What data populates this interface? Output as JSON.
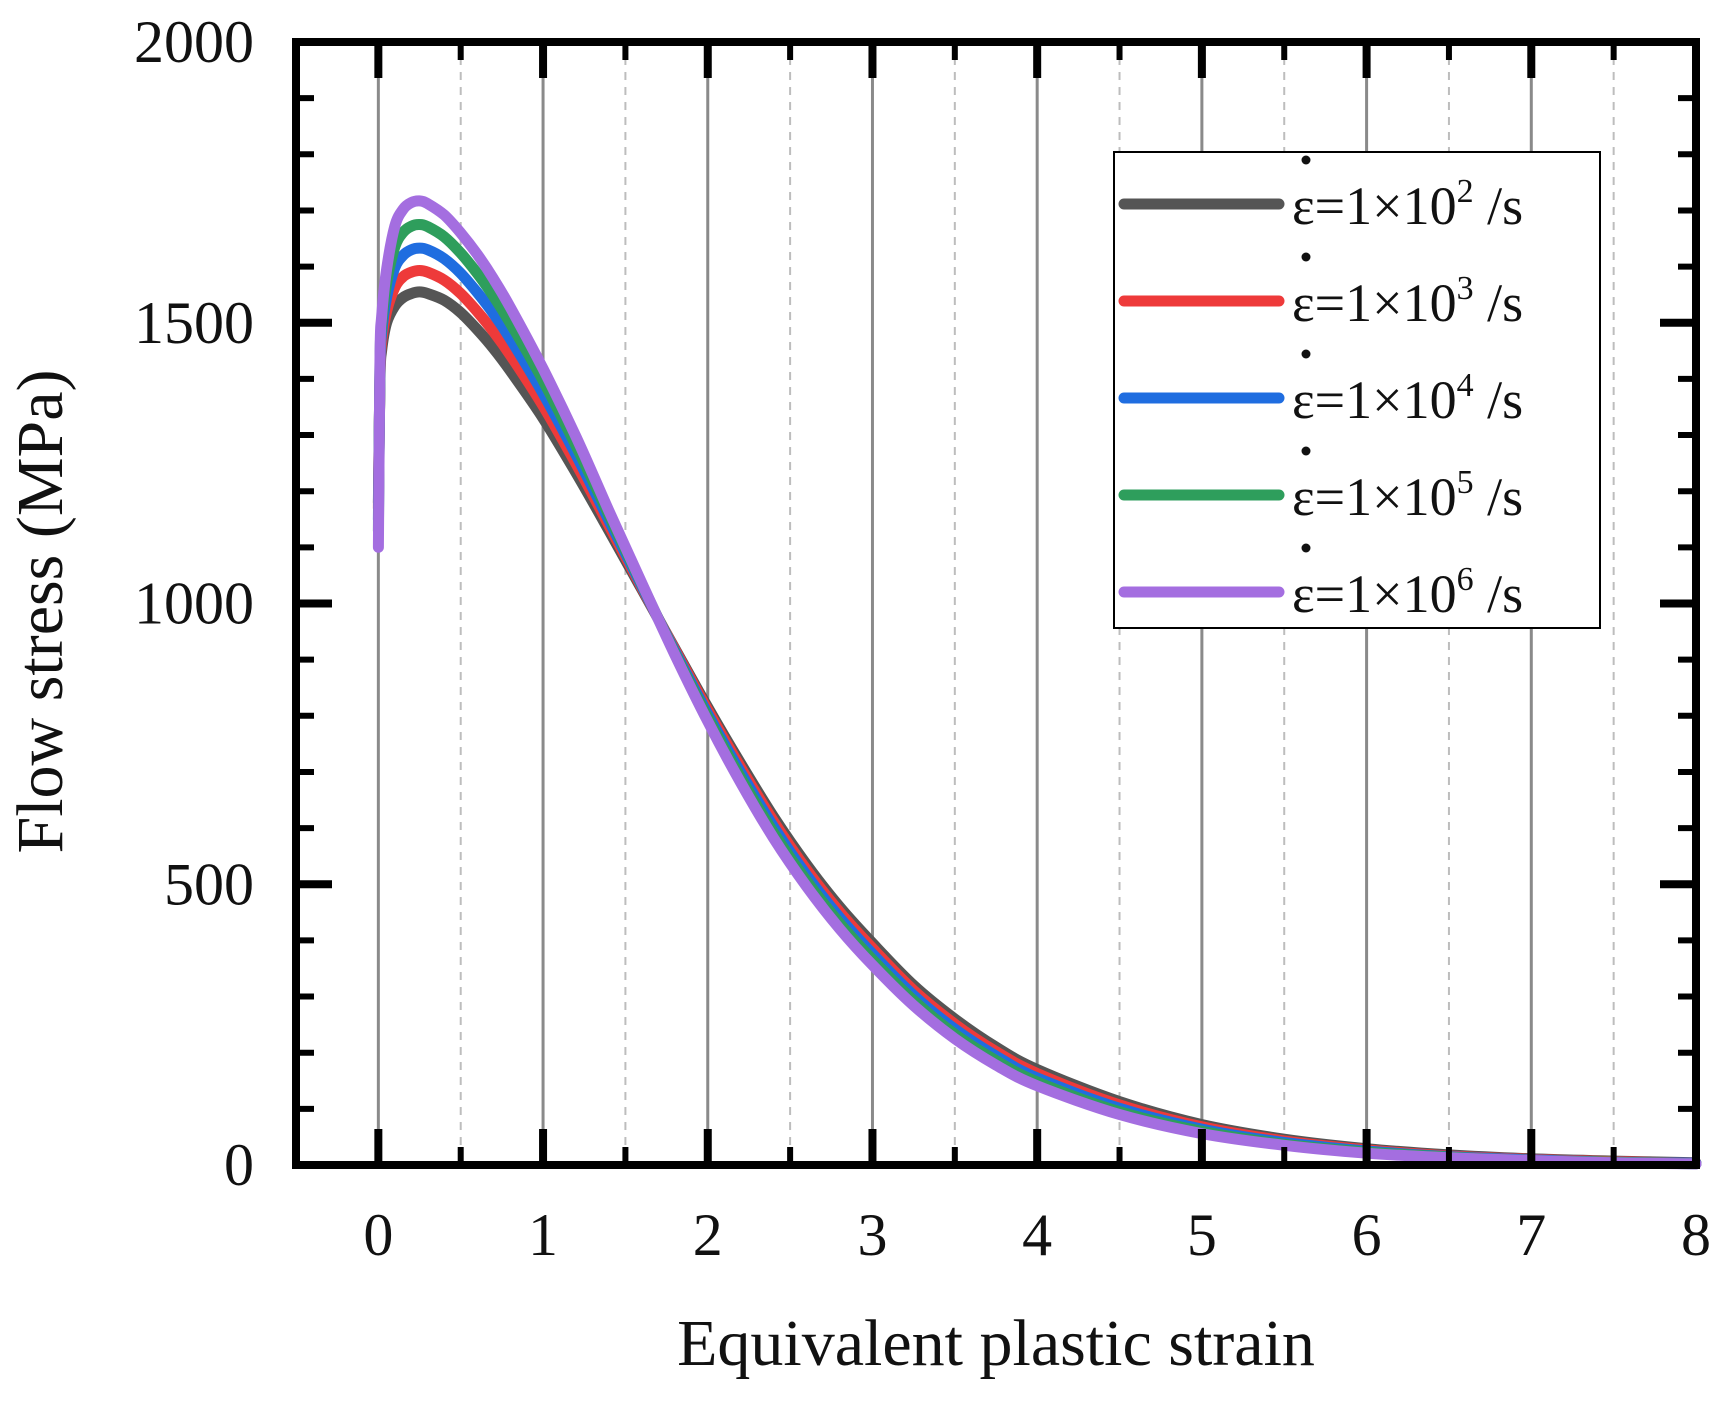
{
  "chart_data": {
    "type": "line",
    "title": "",
    "xlabel": "Equivalent plastic strain",
    "ylabel": "Flow stress (MPa)",
    "xlim": [
      -0.5,
      8
    ],
    "ylim": [
      0,
      2000
    ],
    "xticks": [
      0,
      1,
      2,
      3,
      4,
      5,
      6,
      7,
      8
    ],
    "xtick_labels": [
      "0",
      "1",
      "2",
      "3",
      "4",
      "5",
      "6",
      "7",
      "8"
    ],
    "yticks": [
      0,
      500,
      1000,
      1500,
      2000
    ],
    "ytick_labels": [
      "0",
      "500",
      "1000",
      "1500",
      "2000"
    ],
    "grid": "vertical",
    "legend_position": "top-right",
    "x": [
      0,
      0.01,
      0.02,
      0.05,
      0.1,
      0.15,
      0.2,
      0.25,
      0.3,
      0.4,
      0.5,
      0.6,
      0.7,
      0.8,
      1.0,
      1.2,
      1.4,
      1.6,
      1.8,
      2.0,
      2.2,
      2.4,
      2.6,
      2.8,
      3.0,
      3.25,
      3.5,
      3.75,
      4.0,
      4.5,
      5.0,
      5.5,
      6.0,
      6.5,
      7.0,
      7.5,
      8.0
    ],
    "series": [
      {
        "name_prefix": "ε=1×10",
        "exponent": "2",
        "unit": " /s",
        "color": "#555555",
        "values": [
          1180,
          1400,
          1450,
          1500,
          1530,
          1545,
          1552,
          1555,
          1552,
          1540,
          1518,
          1488,
          1454,
          1415,
          1330,
          1233,
          1130,
          1025,
          920,
          815,
          715,
          620,
          535,
          460,
          395,
          320,
          260,
          210,
          170,
          113,
          72,
          46,
          29,
          18,
          11,
          7,
          4
        ]
      },
      {
        "name_prefix": "ε=1×10",
        "exponent": "3",
        "unit": " /s",
        "color": "#ee3a3a",
        "values": [
          1170,
          1410,
          1465,
          1520,
          1563,
          1582,
          1590,
          1593,
          1590,
          1576,
          1552,
          1520,
          1484,
          1443,
          1352,
          1249,
          1139,
          1028,
          918,
          810,
          708,
          612,
          526,
          451,
          386,
          311,
          251,
          202,
          163,
          107,
          68,
          43,
          27,
          16,
          10,
          6,
          3
        ]
      },
      {
        "name_prefix": "ε=1×10",
        "exponent": "4",
        "unit": " /s",
        "color": "#1f6de0",
        "values": [
          1150,
          1420,
          1480,
          1545,
          1598,
          1620,
          1630,
          1633,
          1630,
          1614,
          1588,
          1554,
          1516,
          1472,
          1374,
          1265,
          1148,
          1031,
          915,
          803,
          699,
          602,
          516,
          441,
          376,
          302,
          242,
          194,
          155,
          101,
          64,
          40,
          25,
          15,
          9,
          5,
          3
        ]
      },
      {
        "name_prefix": "ε=1×10",
        "exponent": "5",
        "unit": " /s",
        "color": "#2e9e5c",
        "values": [
          1130,
          1430,
          1495,
          1570,
          1635,
          1661,
          1672,
          1675,
          1671,
          1653,
          1624,
          1588,
          1547,
          1500,
          1397,
          1281,
          1157,
          1034,
          912,
          797,
          690,
          592,
          506,
          431,
          366,
          293,
          233,
          186,
          148,
          95,
          60,
          37,
          23,
          14,
          8,
          5,
          2
        ]
      },
      {
        "name_prefix": "ε=1×10",
        "exponent": "6",
        "unit": " /s",
        "color": "#a46ee0",
        "values": [
          1100,
          1440,
          1510,
          1595,
          1672,
          1702,
          1714,
          1717,
          1712,
          1692,
          1660,
          1622,
          1578,
          1528,
          1418,
          1297,
          1165,
          1036,
          909,
          790,
          681,
          582,
          496,
          421,
          356,
          284,
          225,
          178,
          141,
          90,
          56,
          35,
          21,
          13,
          8,
          4,
          2
        ]
      }
    ]
  }
}
